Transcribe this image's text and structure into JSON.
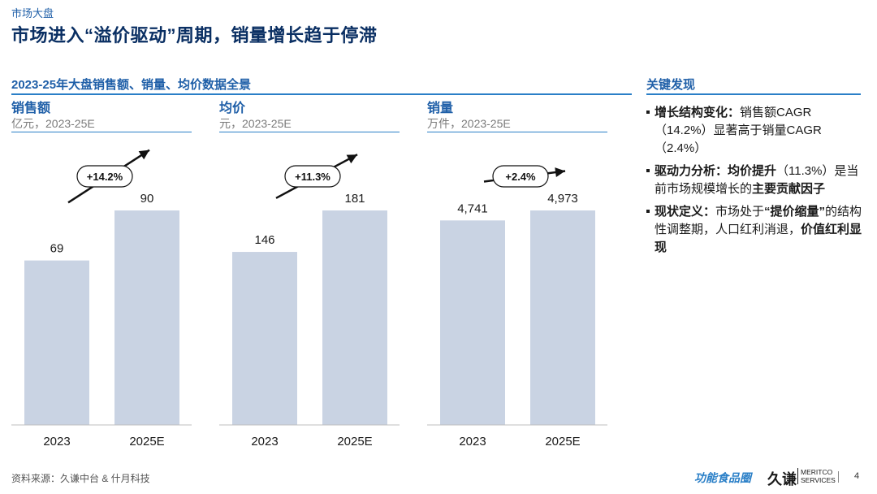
{
  "header": {
    "section": "市场大盘",
    "title": "市场进入“溢价驱动”周期，销量增长趋于停滞",
    "subtitle": "2023-25年大盘销售额、销量、均价数据全景"
  },
  "chart_data": [
    {
      "type": "bar",
      "title": "销售额",
      "unit": "亿元，2023-25E",
      "categories": [
        "2023",
        "2025E"
      ],
      "values": [
        69,
        90
      ],
      "value_labels": [
        "69",
        "90"
      ],
      "growth_label": "+14.2%",
      "bar_color": "#c9d3e3"
    },
    {
      "type": "bar",
      "title": "均价",
      "unit": "元，2023-25E",
      "categories": [
        "2023",
        "2025E"
      ],
      "values": [
        146,
        181
      ],
      "value_labels": [
        "146",
        "181"
      ],
      "growth_label": "+11.3%",
      "bar_color": "#c9d3e3"
    },
    {
      "type": "bar",
      "title": "销量",
      "unit": "万件，2023-25E",
      "categories": [
        "2023",
        "2025E"
      ],
      "values": [
        4741,
        4973
      ],
      "value_labels": [
        "4,741",
        "4,973"
      ],
      "growth_label": "+2.4%",
      "bar_color": "#c9d3e3"
    }
  ],
  "key_findings": {
    "title": "关键发现",
    "items": [
      {
        "segments": [
          {
            "text": "增长结构变化：",
            "bold": true
          },
          {
            "text": "销售额CAGR（14.2%）显著高于销量CAGR（2.4%）",
            "bold": false
          }
        ]
      },
      {
        "segments": [
          {
            "text": "驱动力分析：均价提升",
            "bold": true
          },
          {
            "text": "（11.3%）是当前市场规模增长的",
            "bold": false
          },
          {
            "text": "主要贡献因子",
            "bold": true
          }
        ]
      },
      {
        "segments": [
          {
            "text": "现状定义：",
            "bold": true
          },
          {
            "text": "市场处于",
            "bold": false
          },
          {
            "text": "“提价缩量”",
            "bold": true
          },
          {
            "text": "的结构性调整期，人口红利消退，",
            "bold": false
          },
          {
            "text": "价值红利显现",
            "bold": true
          }
        ]
      }
    ]
  },
  "footer": {
    "source": "资料来源：久谦中台 & 什月科技",
    "logo_primary": "功能食品圈",
    "logo_brand": "久谦",
    "logo_brand_en_1": "MERITCO",
    "logo_brand_en_2": "SERVICES",
    "page_number": "4"
  }
}
